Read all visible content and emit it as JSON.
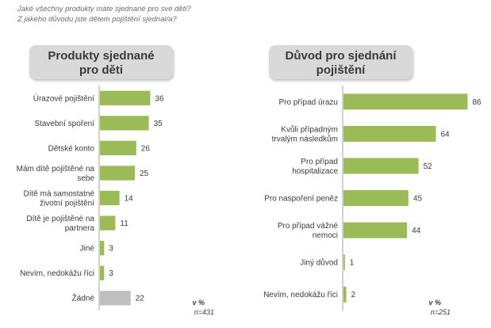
{
  "questions": {
    "line1": "Jaké všechny produkty máte sjednané pro své děti?",
    "line2": "Z jakého důvodu jste dětem pojištění sjednal/a?"
  },
  "colors": {
    "bar": "#9bbb59",
    "bar_none": "#bfbfbf",
    "axis": "#a6a6a6"
  },
  "chart_data": [
    {
      "type": "bar",
      "orientation": "horizontal",
      "title": "Produkty sjednané pro děti",
      "title_lines": [
        "Produkty sjednané",
        "pro děti"
      ],
      "units": "v %",
      "n": "n=431",
      "xlim": [
        0,
        100
      ],
      "categories": [
        [
          "Úrazové pojištění"
        ],
        [
          "Stavební spoření"
        ],
        [
          "Dětské konto"
        ],
        [
          "Mám dítě pojištěné na",
          "sebe"
        ],
        [
          "Dítě má samostatné",
          "životní pojištění"
        ],
        [
          "Dítě je pojištěné na",
          "partnera"
        ],
        [
          "Jiné"
        ],
        [
          "Nevím, nedokážu říci"
        ],
        [
          "Žádné"
        ]
      ],
      "values": [
        36,
        35,
        26,
        25,
        14,
        11,
        3,
        3,
        22
      ],
      "highlight": [
        false,
        false,
        false,
        false,
        false,
        false,
        false,
        false,
        true
      ]
    },
    {
      "type": "bar",
      "orientation": "horizontal",
      "title": "Důvod pro sjednání pojištění",
      "title_lines": [
        "Důvod pro sjednání",
        "pojištění"
      ],
      "units": "v %",
      "n": "n=251",
      "xlim": [
        0,
        100
      ],
      "categories": [
        [
          "Pro případ úrazu"
        ],
        [
          "Kvůli případným",
          "trvalým následkům"
        ],
        [
          "Pro případ",
          "hospitalizace"
        ],
        [
          "Pro naspoření peněz"
        ],
        [
          "Pro případ vážné",
          "nemoci"
        ],
        [
          "Jiný důvod"
        ],
        [
          "Nevím, nedokážu říci"
        ]
      ],
      "values": [
        86,
        64,
        52,
        45,
        44,
        1,
        2
      ],
      "highlight": [
        false,
        false,
        false,
        false,
        false,
        false,
        false
      ]
    }
  ]
}
